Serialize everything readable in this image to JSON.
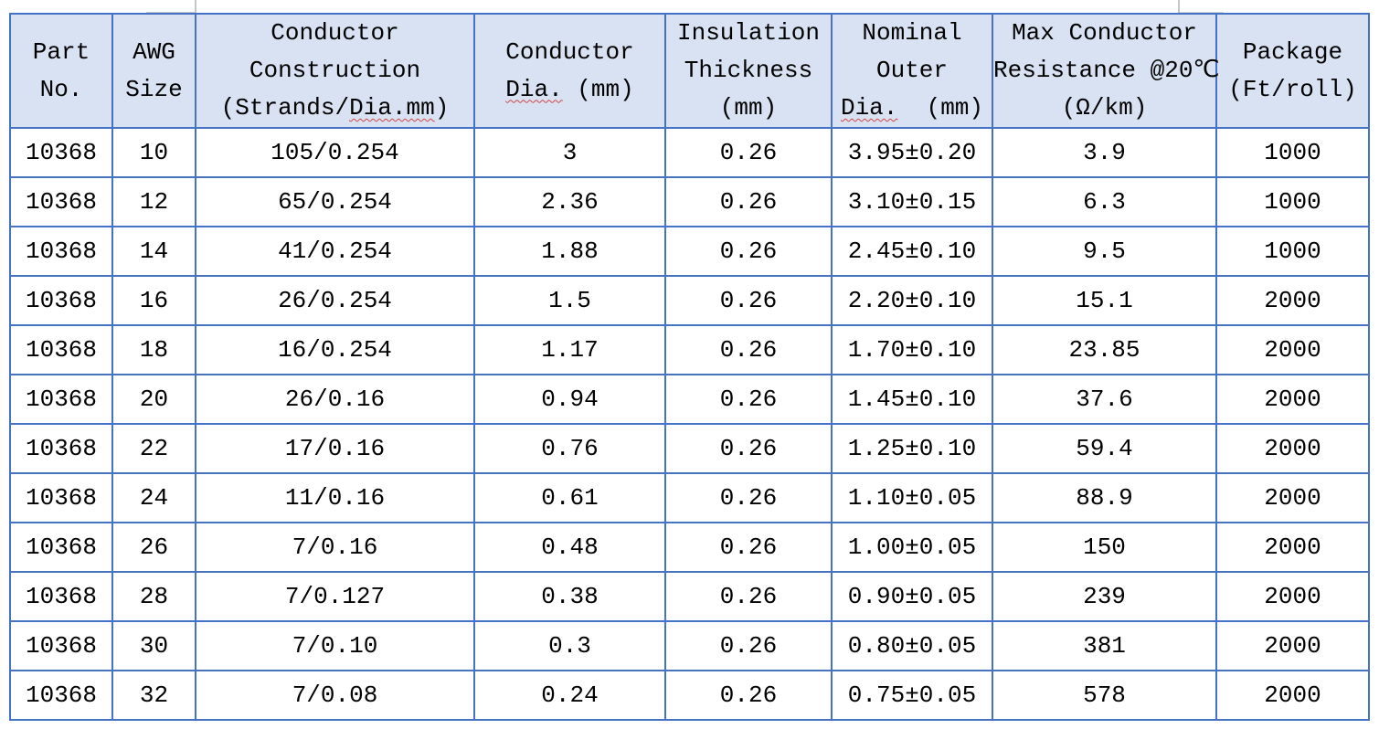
{
  "colors": {
    "table_border": "#4472c4",
    "header_bg": "#d9e2f3",
    "squiggle": "#d04543",
    "text": "#000000",
    "page_bg": "#ffffff"
  },
  "table": {
    "columns": [
      {
        "id": "part-no",
        "lines": [
          "Part",
          "No."
        ]
      },
      {
        "id": "awg-size",
        "lines": [
          "AWG",
          "Size"
        ]
      },
      {
        "id": "conductor-construction",
        "lines": [
          "Conductor",
          "Construction",
          "(Strands/Dia.mm)"
        ],
        "misspelled": "Dia.mm"
      },
      {
        "id": "conductor-dia",
        "lines": [
          "Conductor",
          "Dia. (mm)"
        ],
        "misspelled": "Dia."
      },
      {
        "id": "insulation-thickness",
        "lines": [
          "Insulation",
          "Thickness",
          "(mm)"
        ]
      },
      {
        "id": "nominal-outer-dia",
        "lines": [
          "Nominal",
          "Outer",
          "Dia.  (mm)"
        ],
        "misspelled": "Dia."
      },
      {
        "id": "max-conductor-resistance",
        "lines": [
          "Max Conductor",
          "Resistance @20℃",
          "(Ω/km)"
        ]
      },
      {
        "id": "package",
        "lines": [
          "Package",
          "(Ft/roll)"
        ]
      }
    ],
    "rows": [
      [
        "10368",
        "10",
        "105/0.254",
        "3",
        "0.26",
        "3.95±0.20",
        "3.9",
        "1000"
      ],
      [
        "10368",
        "12",
        "65/0.254",
        "2.36",
        "0.26",
        "3.10±0.15",
        "6.3",
        "1000"
      ],
      [
        "10368",
        "14",
        "41/0.254",
        "1.88",
        "0.26",
        "2.45±0.10",
        "9.5",
        "1000"
      ],
      [
        "10368",
        "16",
        "26/0.254",
        "1.5",
        "0.26",
        "2.20±0.10",
        "15.1",
        "2000"
      ],
      [
        "10368",
        "18",
        "16/0.254",
        "1.17",
        "0.26",
        "1.70±0.10",
        "23.85",
        "2000"
      ],
      [
        "10368",
        "20",
        "26/0.16",
        "0.94",
        "0.26",
        "1.45±0.10",
        "37.6",
        "2000"
      ],
      [
        "10368",
        "22",
        "17/0.16",
        "0.76",
        "0.26",
        "1.25±0.10",
        "59.4",
        "2000"
      ],
      [
        "10368",
        "24",
        "11/0.16",
        "0.61",
        "0.26",
        "1.10±0.05",
        "88.9",
        "2000"
      ],
      [
        "10368",
        "26",
        "7/0.16",
        "0.48",
        "0.26",
        "1.00±0.05",
        "150",
        "2000"
      ],
      [
        "10368",
        "28",
        "7/0.127",
        "0.38",
        "0.26",
        "0.90±0.05",
        "239",
        "2000"
      ],
      [
        "10368",
        "30",
        "7/0.10",
        "0.3",
        "0.26",
        "0.80±0.05",
        "381",
        "2000"
      ],
      [
        "10368",
        "32",
        "7/0.08",
        "0.24",
        "0.26",
        "0.75±0.05",
        "578",
        "2000"
      ]
    ]
  }
}
